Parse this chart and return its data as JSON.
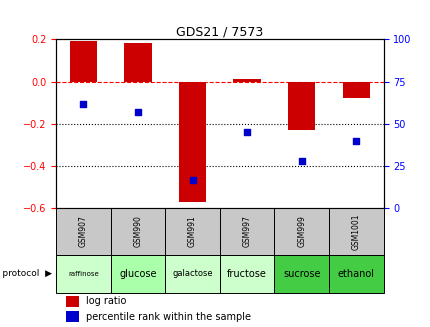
{
  "title": "GDS21 / 7573",
  "samples": [
    "GSM907",
    "GSM990",
    "GSM991",
    "GSM997",
    "GSM999",
    "GSM1001"
  ],
  "protocols": [
    "raffinose",
    "glucose",
    "galactose",
    "fructose",
    "sucrose",
    "ethanol"
  ],
  "protocol_colors": [
    "#ccffcc",
    "#aaffaa",
    "#ccffcc",
    "#ccffcc",
    "#44cc44",
    "#44cc44"
  ],
  "sample_bg": "#c8c8c8",
  "log_ratios": [
    0.19,
    0.18,
    -0.57,
    0.01,
    -0.23,
    -0.08
  ],
  "percentile_ranks": [
    62,
    57,
    17,
    45,
    28,
    40
  ],
  "bar_color": "#cc0000",
  "dot_color": "#0000cc",
  "left_ylim": [
    -0.6,
    0.2
  ],
  "right_ylim": [
    0,
    100
  ],
  "left_yticks": [
    -0.6,
    -0.4,
    -0.2,
    0.0,
    0.2
  ],
  "right_yticks": [
    0,
    25,
    50,
    75,
    100
  ],
  "dotted_lines": [
    -0.2,
    -0.4
  ],
  "bar_width": 0.5
}
